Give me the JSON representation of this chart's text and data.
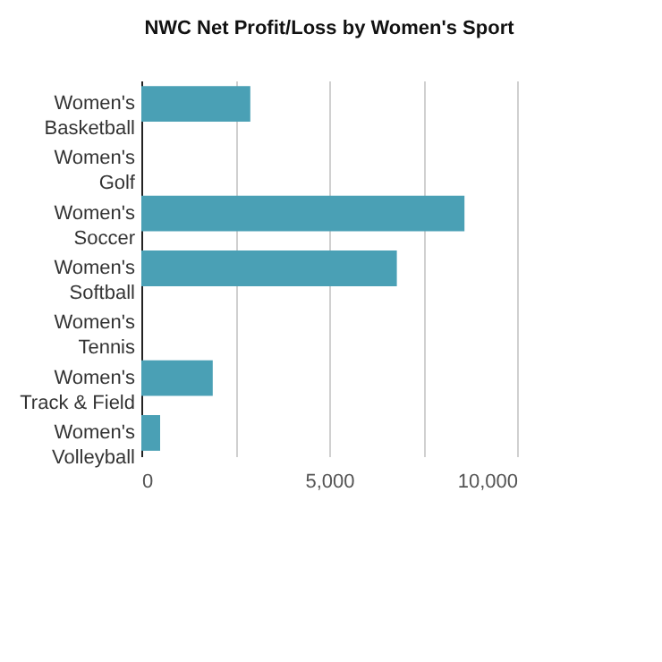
{
  "chart_data": {
    "type": "bar",
    "orientation": "horizontal",
    "title": "NWC Net Profit/Loss by Women's Sport",
    "categories": [
      "Women's Basketball",
      "Women's Golf",
      "Women's Soccer",
      "Women's Softball",
      "Women's Tennis",
      "Women's Track & Field",
      "Women's Volleyball"
    ],
    "values": [
      2900,
      0,
      8600,
      6800,
      0,
      1900,
      500
    ],
    "color": "#4aa0b5",
    "xlim": [
      0,
      10000
    ],
    "xticks": [
      0,
      {
        "value": 2500,
        "label": null
      },
      {
        "value": 5000,
        "label": "5,000"
      },
      {
        "value": 7500,
        "label": null
      },
      {
        "value": 10000,
        "label": "10,000"
      }
    ],
    "grid": "x"
  }
}
